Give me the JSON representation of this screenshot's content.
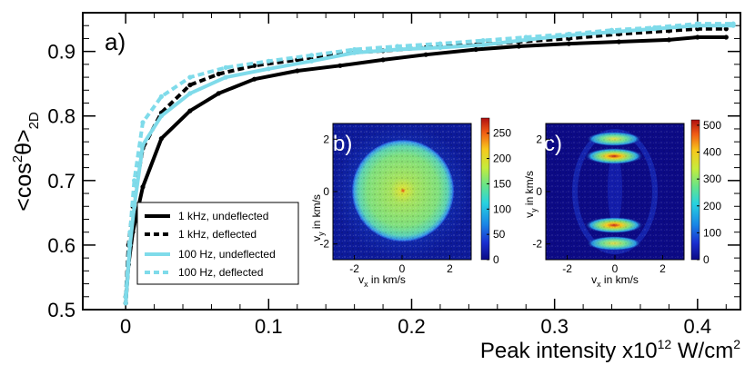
{
  "chart_data": [
    {
      "type": "line",
      "panel_label": "a)",
      "title": "",
      "xlabel": "Peak intensity x10",
      "xlabel_exp": "12",
      "xlabel_unit": " W/cm",
      "xlabel_unit_exp": "2",
      "ylabel_pre": "<cos",
      "ylabel_sup": "2",
      "ylabel_mid": "θ>",
      "ylabel_sub": "2D",
      "xlim": [
        -0.03,
        0.43
      ],
      "ylim": [
        0.5,
        0.96
      ],
      "xticks": [
        0,
        0.1,
        0.2,
        0.3,
        0.4
      ],
      "xtick_labels": [
        "0",
        "0.1",
        "0.2",
        "0.3",
        "0.4"
      ],
      "yticks": [
        0.5,
        0.6,
        0.7,
        0.8,
        0.9
      ],
      "ytick_labels": [
        "0.5",
        "0.6",
        "0.7",
        "0.8",
        "0.9"
      ],
      "grid": false,
      "legend_position": "lower-left",
      "series": [
        {
          "name": "1 kHz, undeflected",
          "color": "#000000",
          "dash": "solid",
          "x": [
            0,
            0.002,
            0.005,
            0.012,
            0.025,
            0.045,
            0.065,
            0.09,
            0.12,
            0.15,
            0.18,
            0.21,
            0.245,
            0.275,
            0.31,
            0.345,
            0.38,
            0.4,
            0.42
          ],
          "y": [
            0.51,
            0.57,
            0.62,
            0.69,
            0.765,
            0.808,
            0.835,
            0.857,
            0.87,
            0.878,
            0.887,
            0.895,
            0.903,
            0.908,
            0.912,
            0.915,
            0.918,
            0.922,
            0.922
          ]
        },
        {
          "name": "1 kHz, deflected",
          "color": "#000000",
          "dash": "dashed",
          "x": [
            0,
            0.002,
            0.005,
            0.012,
            0.025,
            0.045,
            0.065,
            0.09,
            0.12,
            0.15,
            0.18,
            0.21,
            0.245,
            0.275,
            0.31,
            0.345,
            0.38,
            0.4,
            0.42
          ],
          "y": [
            0.52,
            0.6,
            0.66,
            0.75,
            0.805,
            0.848,
            0.865,
            0.878,
            0.887,
            0.897,
            0.901,
            0.906,
            0.91,
            0.915,
            0.92,
            0.927,
            0.932,
            0.935,
            0.935
          ]
        },
        {
          "name": "100 Hz, undeflected",
          "color": "#7fdbea",
          "dash": "solid",
          "x": [
            0,
            0.003,
            0.006,
            0.012,
            0.025,
            0.045,
            0.07,
            0.1,
            0.13,
            0.16,
            0.19,
            0.22,
            0.25,
            0.28,
            0.31,
            0.34,
            0.37,
            0.4,
            0.425
          ],
          "y": [
            0.51,
            0.6,
            0.66,
            0.755,
            0.8,
            0.835,
            0.86,
            0.873,
            0.885,
            0.898,
            0.903,
            0.906,
            0.91,
            0.918,
            0.925,
            0.93,
            0.935,
            0.94,
            0.94
          ]
        },
        {
          "name": "100 Hz, deflected",
          "color": "#7fdbea",
          "dash": "dashed",
          "x": [
            0,
            0.003,
            0.006,
            0.012,
            0.025,
            0.045,
            0.07,
            0.1,
            0.13,
            0.16,
            0.19,
            0.22,
            0.25,
            0.28,
            0.31,
            0.34,
            0.37,
            0.4,
            0.425
          ],
          "y": [
            0.52,
            0.62,
            0.7,
            0.79,
            0.83,
            0.86,
            0.875,
            0.885,
            0.894,
            0.903,
            0.908,
            0.912,
            0.917,
            0.922,
            0.927,
            0.933,
            0.937,
            0.943,
            0.943
          ]
        }
      ]
    },
    {
      "type": "heatmap",
      "panel_label": "b)",
      "xlabel": "vx in km/s",
      "xlabel_main": "v",
      "xlabel_sub": "x",
      "xlabel_rest": " in km/s",
      "ylabel_main": "v",
      "ylabel_sub": "y",
      "ylabel_rest": " in km/s",
      "xlim": [
        -2.9,
        2.9
      ],
      "ylim": [
        -2.6,
        2.6
      ],
      "xticks": [
        -2,
        0,
        2
      ],
      "xtick_labels": [
        "-2",
        "0",
        "2"
      ],
      "yticks": [
        -2,
        0,
        2
      ],
      "ytick_labels": [
        "-2",
        "0",
        "2"
      ],
      "colorbar_range": [
        0,
        280
      ],
      "colorbar_ticks": [
        0,
        50,
        100,
        150,
        200,
        250
      ],
      "colorbar_labels": [
        "0",
        "50",
        "100",
        "150",
        "200",
        "250"
      ],
      "description": "isotropic disk of radius ~2 km/s with peak at origin"
    },
    {
      "type": "heatmap",
      "panel_label": "c)",
      "xlabel_main": "v",
      "xlabel_sub": "x",
      "xlabel_rest": " in km/s",
      "ylabel_main": "v",
      "ylabel_sub": "y",
      "ylabel_rest": " in km/s",
      "xlim": [
        -2.9,
        2.9
      ],
      "ylim": [
        -2.6,
        2.6
      ],
      "xticks": [
        -2,
        0,
        2
      ],
      "xtick_labels": [
        "-2",
        "0",
        "2"
      ],
      "yticks": [
        -2,
        0,
        2
      ],
      "ytick_labels": [
        "-2",
        "0",
        "2"
      ],
      "colorbar_range": [
        0,
        520
      ],
      "colorbar_ticks": [
        0,
        100,
        200,
        300,
        400,
        500
      ],
      "colorbar_labels": [
        "0",
        "100",
        "200",
        "300",
        "400",
        "500"
      ],
      "description": "aligned distribution with lobes near vy = ±2 km/s"
    }
  ]
}
